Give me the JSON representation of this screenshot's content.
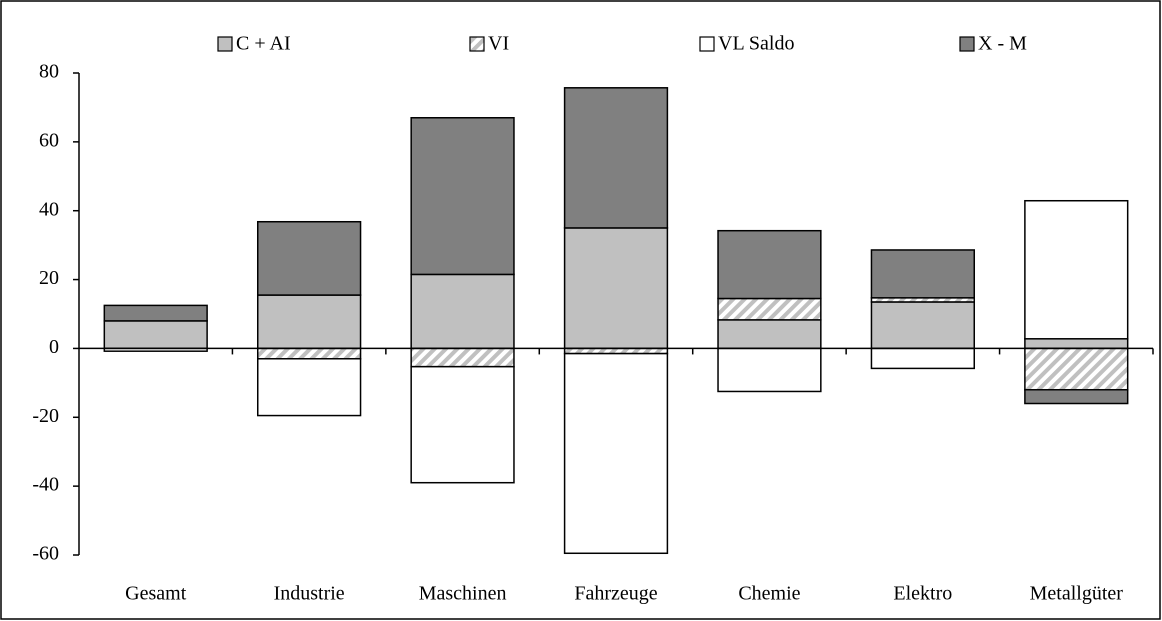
{
  "chart_data": {
    "type": "bar",
    "stacked": true,
    "categories": [
      "Gesamt",
      "Industrie",
      "Maschinen",
      "Fahrzeuge",
      "Chemie",
      "Elektro",
      "Metallgüter"
    ],
    "series": [
      {
        "name": "C + AI",
        "color": "#c0c0c0",
        "values": [
          8,
          15.5,
          21.5,
          35,
          8.3,
          13.5,
          2.8
        ]
      },
      {
        "name": "VI",
        "color": "#c0c0c0",
        "hatch": true,
        "values": [
          0,
          -3,
          -5.3,
          -1.5,
          6.2,
          1.2,
          -12
        ]
      },
      {
        "name": "VL Saldo",
        "color": "#ffffff",
        "values": [
          -0.8,
          -16.5,
          -33.7,
          -58,
          -12.5,
          -5.8,
          40.1
        ]
      },
      {
        "name": "X - M",
        "color": "#808080",
        "values": [
          4.5,
          21.3,
          45.5,
          40.7,
          19.7,
          13.9,
          -4
        ]
      }
    ],
    "ylim": [
      -60,
      80
    ],
    "yticks": [
      -60,
      -40,
      -20,
      0,
      20,
      40,
      60,
      80
    ],
    "grid": false,
    "legend": "top"
  }
}
